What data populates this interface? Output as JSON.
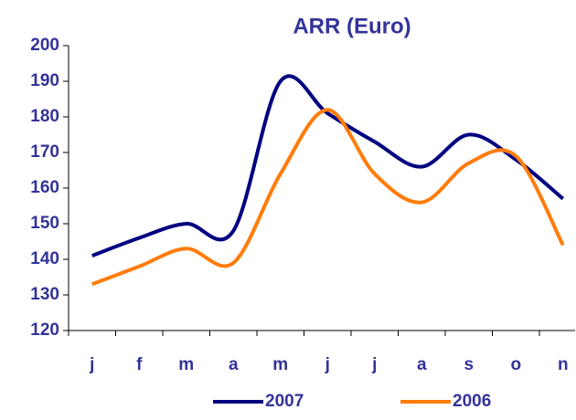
{
  "chart_data": {
    "type": "line",
    "title": "ARR (Euro)",
    "categories": [
      "j",
      "f",
      "m",
      "a",
      "m",
      "j",
      "j",
      "a",
      "s",
      "o",
      "n"
    ],
    "series": [
      {
        "name": "2007",
        "color": "#000080",
        "values": [
          141,
          146,
          150,
          148,
          190,
          181,
          173,
          166,
          175,
          168,
          157
        ]
      },
      {
        "name": "2006",
        "color": "#ff7c0a",
        "values": [
          133,
          138,
          143,
          139,
          164,
          182,
          164,
          156,
          167,
          169,
          144
        ]
      }
    ],
    "ylim": [
      120,
      200
    ],
    "yticks": [
      120,
      130,
      140,
      150,
      160,
      170,
      180,
      190,
      200
    ],
    "grid": false,
    "smooth": true,
    "legend": "bottom"
  }
}
